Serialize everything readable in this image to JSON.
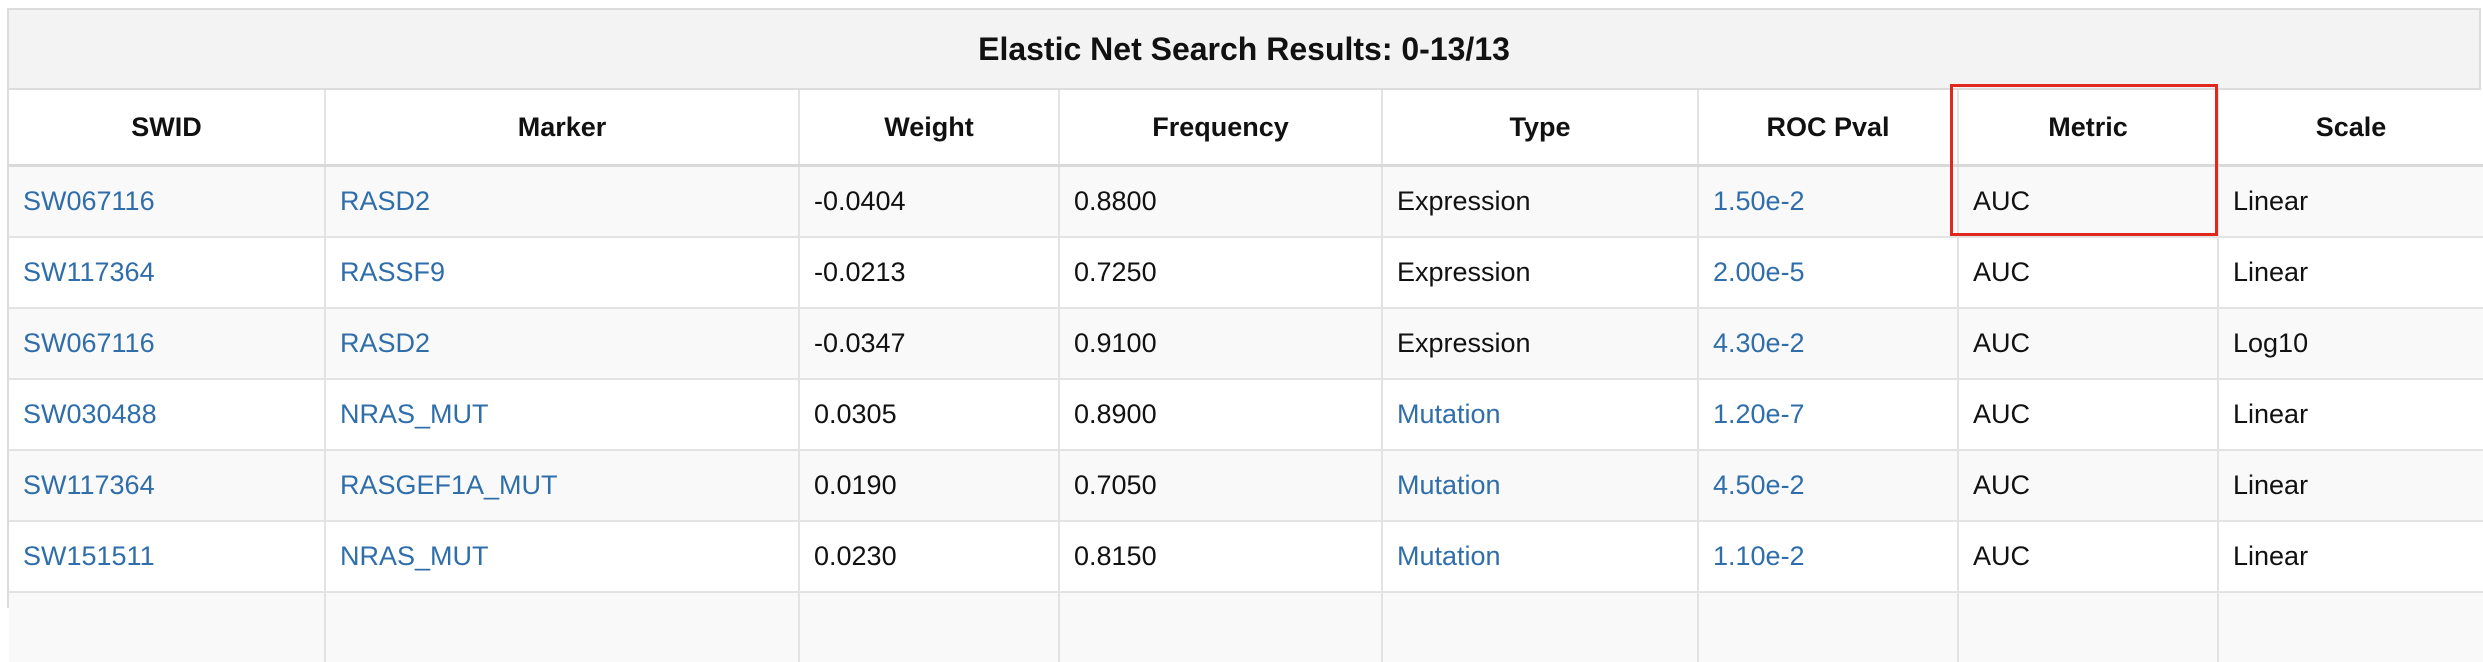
{
  "panel": {
    "title": "Elastic Net Search Results: 0-13/13"
  },
  "columns": {
    "swid": "SWID",
    "marker": "Marker",
    "weight": "Weight",
    "frequency": "Frequency",
    "type": "Type",
    "roc_pval": "ROC Pval",
    "metric": "Metric",
    "scale": "Scale"
  },
  "rows": [
    {
      "swid": "SW067116",
      "marker": "RASD2",
      "weight": "-0.0404",
      "frequency": "0.8800",
      "type": "Expression",
      "roc_pval": "1.50e-2",
      "metric": "AUC",
      "scale": "Linear"
    },
    {
      "swid": "SW117364",
      "marker": "RASSF9",
      "weight": "-0.0213",
      "frequency": "0.7250",
      "type": "Expression",
      "roc_pval": "2.00e-5",
      "metric": "AUC",
      "scale": "Linear"
    },
    {
      "swid": "SW067116",
      "marker": "RASD2",
      "weight": "-0.0347",
      "frequency": "0.9100",
      "type": "Expression",
      "roc_pval": "4.30e-2",
      "metric": "AUC",
      "scale": "Log10"
    },
    {
      "swid": "SW030488",
      "marker": "NRAS_MUT",
      "weight": "0.0305",
      "frequency": "0.8900",
      "type": "Mutation",
      "roc_pval": "1.20e-7",
      "metric": "AUC",
      "scale": "Linear"
    },
    {
      "swid": "SW117364",
      "marker": "RASGEF1A_MUT",
      "weight": "0.0190",
      "frequency": "0.7050",
      "type": "Mutation",
      "roc_pval": "4.50e-2",
      "metric": "AUC",
      "scale": "Linear"
    },
    {
      "swid": "SW151511",
      "marker": "NRAS_MUT",
      "weight": "0.0230",
      "frequency": "0.8150",
      "type": "Mutation",
      "roc_pval": "1.10e-2",
      "metric": "AUC",
      "scale": "Linear"
    },
    {
      "swid": "",
      "marker": "",
      "weight": "",
      "frequency": "",
      "type": "",
      "roc_pval": "",
      "metric": "",
      "scale": ""
    }
  ],
  "colors": {
    "link": "#2f6eaa",
    "highlight_border": "#e0281f",
    "title_bar": "#f3f3f3",
    "striped_row": "#f9f9f9"
  }
}
